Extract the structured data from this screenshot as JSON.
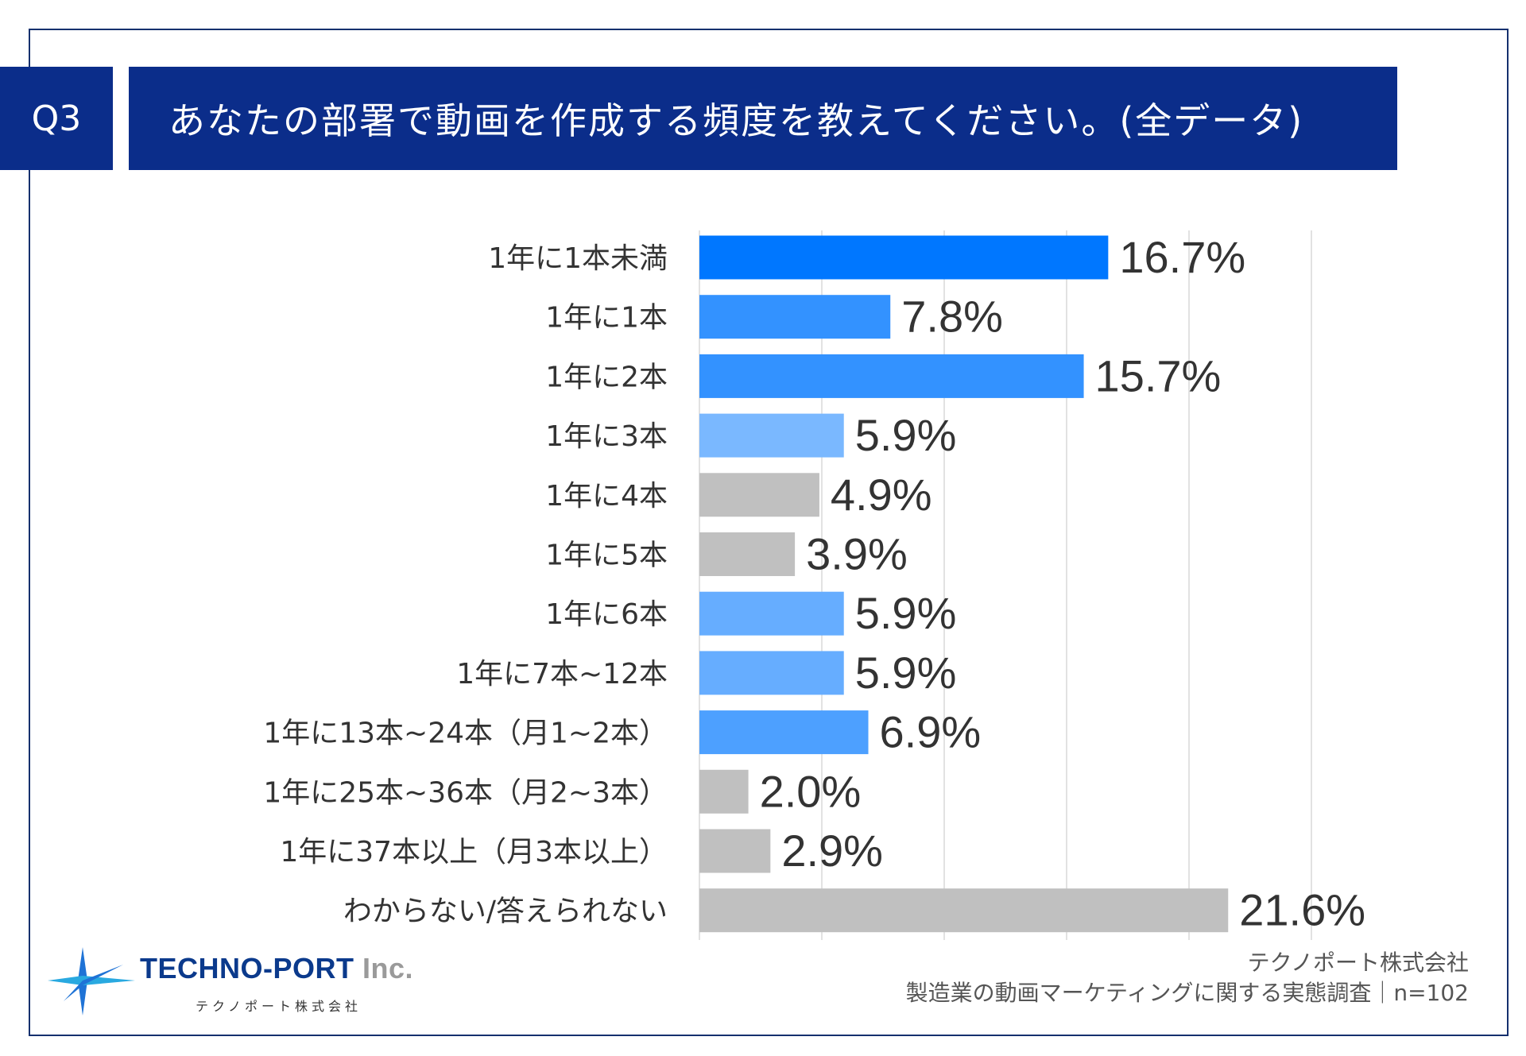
{
  "question": {
    "number": "Q3",
    "title": "あなたの部署で動画を作成する頻度を教えてください。(全データ)"
  },
  "colors": {
    "header_bg": "#0b2d8a",
    "bar_blue_dark": "#0077ff",
    "bar_blue_mid": "#3392ff",
    "bar_blue_light": "#66adff",
    "bar_blue_pale": "#7ab8ff",
    "bar_gray": "#c0c0c0",
    "grid": "#d9d9d9"
  },
  "chart_data": {
    "type": "bar",
    "orientation": "horizontal",
    "categories": [
      "1年に1本未満",
      "1年に1本",
      "1年に2本",
      "1年に3本",
      "1年に4本",
      "1年に5本",
      "1年に6本",
      "1年に7本~12本",
      "1年に13本~24本（月1~2本）",
      "1年に25本~36本（月2~3本）",
      "1年に37本以上（月3本以上）",
      "わからない/答えられない"
    ],
    "values": [
      16.7,
      7.8,
      15.7,
      5.9,
      4.9,
      3.9,
      5.9,
      5.9,
      6.9,
      2.0,
      2.9,
      21.6
    ],
    "value_labels": [
      "16.7%",
      "7.8%",
      "15.7%",
      "5.9%",
      "4.9%",
      "3.9%",
      "5.9%",
      "5.9%",
      "6.9%",
      "2.0%",
      "2.9%",
      "21.6%"
    ],
    "bar_colors": [
      "#0077ff",
      "#3392ff",
      "#3392ff",
      "#7ab8ff",
      "#c0c0c0",
      "#c0c0c0",
      "#66adff",
      "#66adff",
      "#4da0ff",
      "#c0c0c0",
      "#c0c0c0",
      "#c0c0c0"
    ],
    "xlim": [
      0,
      25
    ],
    "grid_ticks": [
      5,
      10,
      15,
      20,
      25
    ],
    "unit": "%"
  },
  "footer": {
    "company": "テクノポート株式会社",
    "survey": "製造業の動画マーケティングに関する実態調査｜n=102"
  },
  "logo": {
    "main": "TECHNO-PORT",
    "suffix": " Inc.",
    "sub": "テクノポート株式会社"
  }
}
